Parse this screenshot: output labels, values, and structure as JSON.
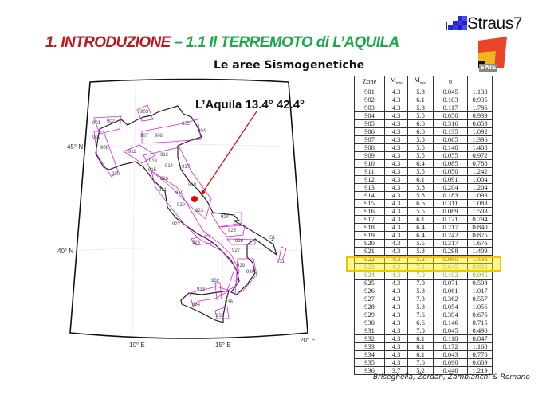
{
  "slide": {
    "title_red": "1. INTRODUZIONE",
    "title_green": " – 1.1 Il TERREMOTO di L’AQUILA",
    "subtitle": "Le aree Sismogenetiche",
    "footer": "Briseghella, Zordan, Zambianchi & Romano"
  },
  "logos": {
    "straus": "Straus7",
    "saie": "SAIE"
  },
  "map": {
    "annotation": "L’Aquila 13.4° 42.4°",
    "lat_labels": [
      "45° N",
      "40° N"
    ],
    "lon_labels": [
      "10° E",
      "15° E",
      "20° E"
    ],
    "zone_labels": [
      "901",
      "902",
      "903",
      "904",
      "905",
      "906",
      "907",
      "908",
      "909",
      "910",
      "911",
      "912",
      "913",
      "914",
      "915",
      "916",
      "917",
      "918",
      "919",
      "920",
      "921",
      "922",
      "923",
      "924",
      "925",
      "926",
      "927",
      "928",
      "929",
      "930",
      "931",
      "S1",
      "932",
      "933",
      "934",
      "935",
      "936"
    ],
    "colors": {
      "zones": "#e020e0",
      "coast": "#222222",
      "epicenter": "#ee0000",
      "highlight": "#f5c400"
    }
  },
  "table": {
    "headers": [
      "Zone",
      "Mmin",
      "Mmax",
      "υ",
      ""
    ],
    "highlighted_zone": "923",
    "rows": [
      [
        "901",
        "4.3",
        "5.8",
        "0.045",
        "1.133"
      ],
      [
        "902",
        "4.3",
        "6.1",
        "0.103",
        "0.935"
      ],
      [
        "903",
        "4.3",
        "5.8",
        "0.117",
        "1.786"
      ],
      [
        "904",
        "4.3",
        "5.5",
        "0.050",
        "0.939"
      ],
      [
        "905",
        "4.3",
        "6.6",
        "0.316",
        "0.853"
      ],
      [
        "906",
        "4.3",
        "6.6",
        "0.135",
        "1.092"
      ],
      [
        "907",
        "4.3",
        "5.8",
        "0.065",
        "1.396"
      ],
      [
        "908",
        "4.3",
        "5.5",
        "0.140",
        "1.408"
      ],
      [
        "909",
        "4.3",
        "5.5",
        "0.055",
        "0.972"
      ],
      [
        "910",
        "4.3",
        "6.4",
        "0.085",
        "0.788"
      ],
      [
        "911",
        "4.3",
        "5.5",
        "0.050",
        "1.242"
      ],
      [
        "912",
        "4.3",
        "6.1",
        "0.091",
        "1.004"
      ],
      [
        "913",
        "4.3",
        "5.8",
        "0.204",
        "1.204"
      ],
      [
        "914",
        "4.3",
        "5.8",
        "0.183",
        "1.093"
      ],
      [
        "915",
        "4.3",
        "6.6",
        "0.311",
        "1.083"
      ],
      [
        "916",
        "4.3",
        "5.5",
        "0.089",
        "1.503"
      ],
      [
        "917",
        "4.3",
        "6.1",
        "0.121",
        "0.794"
      ],
      [
        "918",
        "4.3",
        "6.4",
        "0.217",
        "0.840"
      ],
      [
        "919",
        "4.3",
        "6.4",
        "0.242",
        "0.875"
      ],
      [
        "920",
        "4.3",
        "5.5",
        "0.317",
        "1.676"
      ],
      [
        "921",
        "4.3",
        "5.8",
        "0.298",
        "1.409"
      ],
      [
        "922",
        "4.3",
        "5.2",
        "0.090",
        "1.436"
      ],
      [
        "923",
        "4.3",
        "7.3",
        "0.645",
        "0.802"
      ],
      [
        "924",
        "4.3",
        "7.0",
        "0.102",
        "0.945"
      ],
      [
        "925",
        "4.3",
        "7.0",
        "0.071",
        "0.508"
      ],
      [
        "926",
        "4.3",
        "5.8",
        "0.061",
        "1.017"
      ],
      [
        "927",
        "4.3",
        "7.3",
        "0.362",
        "0.557"
      ],
      [
        "928",
        "4.3",
        "5.8",
        "0.054",
        "1.056"
      ],
      [
        "929",
        "4.3",
        "7.6",
        "0.394",
        "0.676"
      ],
      [
        "930",
        "4.3",
        "6.6",
        "0.146",
        "0.715"
      ],
      [
        "931",
        "4.3",
        "7.0",
        "0.045",
        "0.490"
      ],
      [
        "932",
        "4.3",
        "6.1",
        "0.118",
        "0.847"
      ],
      [
        "933",
        "4.3",
        "6.1",
        "0.172",
        "1.160"
      ],
      [
        "934",
        "4.3",
        "6.1",
        "0.043",
        "0.778"
      ],
      [
        "935",
        "4.3",
        "7.6",
        "0.090",
        "0.609"
      ],
      [
        "936",
        "3.7",
        "5.2",
        "0.448",
        "1.219"
      ]
    ]
  }
}
